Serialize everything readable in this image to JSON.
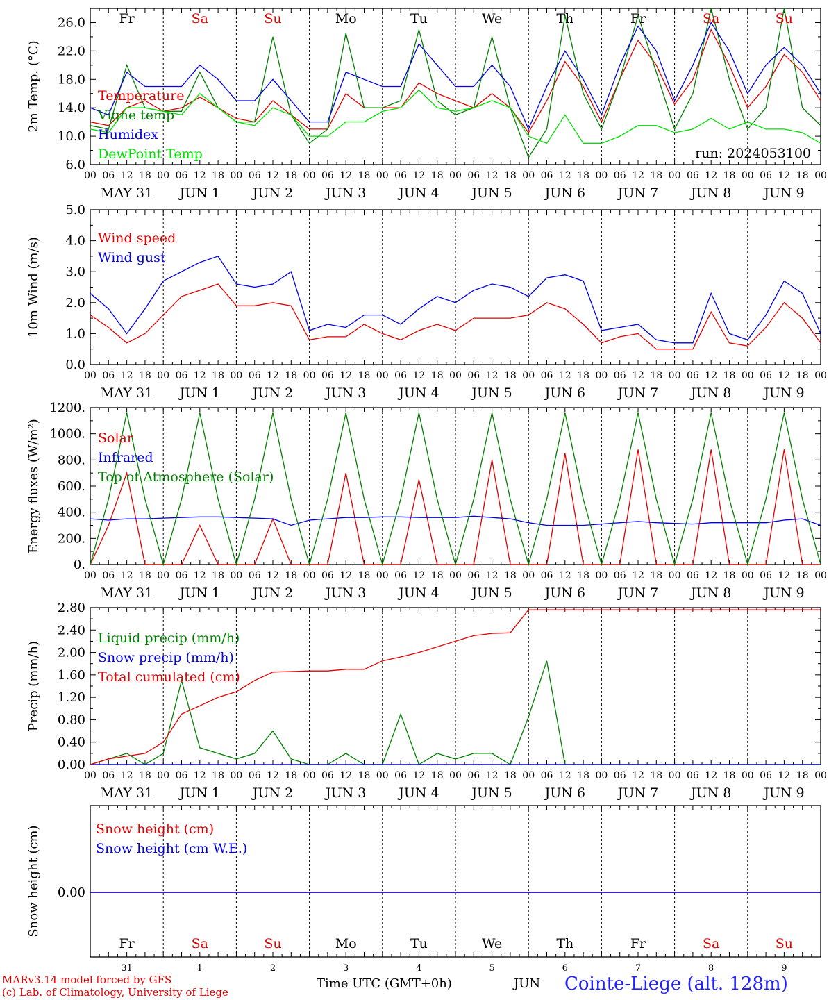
{
  "run": "run: 2024053100",
  "station": "Cointe-Liege (alt. 128m)",
  "credit_line1": "MARv3.14 model forced by GFS",
  "credit_line2": "(c) Lab. of Climatology, University of Liege",
  "time_axis_label": "Time UTC (GMT+0h)",
  "month_label": "JUN",
  "weekdays": [
    "Fr",
    "Sa",
    "Su",
    "Mo",
    "Tu",
    "We",
    "Th",
    "Fr",
    "Sa",
    "Su"
  ],
  "weekday_colors": [
    "#000000",
    "#e00000",
    "#e00000",
    "#000000",
    "#000000",
    "#000000",
    "#000000",
    "#000000",
    "#e00000",
    "#e00000"
  ],
  "date_labels": [
    "MAY 31",
    "JUN  1",
    "JUN  2",
    "JUN  3",
    "JUN  4",
    "JUN  5",
    "JUN  6",
    "JUN  7",
    "JUN  8",
    "JUN  9"
  ],
  "day_numbers": [
    "31",
    "1",
    "2",
    "3",
    "4",
    "5",
    "6",
    "7",
    "8",
    "9"
  ],
  "hour_ticks": [
    "00",
    "06",
    "12",
    "18"
  ],
  "final_hour": "00",
  "chart_data": [
    {
      "type": "line",
      "ylabel": "2m Temp. (°C)",
      "ylim": [
        6,
        28
      ],
      "yticks": [
        6.0,
        10.0,
        14.0,
        18.0,
        22.0,
        26.0
      ],
      "ytick_labels": [
        "6.0",
        "10.0",
        "14.0",
        "18.0",
        "22.0",
        "26.0"
      ],
      "x_hours": [
        0,
        6,
        12,
        18,
        24,
        30,
        36,
        42,
        48,
        54,
        60,
        66,
        72,
        78,
        84,
        90,
        96,
        102,
        108,
        114,
        120,
        126,
        132,
        138,
        144,
        150,
        156,
        162,
        168,
        174,
        180,
        186,
        192,
        198,
        204,
        210,
        216,
        222,
        228,
        234,
        240
      ],
      "series": [
        {
          "name": "Temperature",
          "color": "#e00000",
          "values": [
            12,
            11.5,
            14,
            15,
            13.5,
            14,
            15.5,
            14,
            12.5,
            12,
            15,
            13,
            11,
            11,
            16,
            14,
            14,
            14,
            17.5,
            16,
            15,
            14,
            16,
            14,
            10.5,
            15,
            20.5,
            17,
            12,
            18,
            23.5,
            20,
            14.5,
            18,
            25,
            20,
            14,
            17,
            21.5,
            19,
            15
          ]
        },
        {
          "name": "Vigne temp",
          "color": "#008000",
          "values": [
            11.5,
            11,
            20,
            14,
            13.5,
            13.5,
            19,
            14,
            12,
            12,
            24,
            13,
            9,
            11,
            24.5,
            14,
            14,
            15,
            25,
            15,
            13,
            14,
            24,
            14,
            7,
            11,
            27,
            16,
            11,
            18,
            27,
            19,
            11,
            16,
            28,
            18,
            11,
            14,
            28,
            14,
            11.5
          ]
        },
        {
          "name": "Humidex",
          "color": "#0000e0",
          "values": [
            14,
            13,
            19,
            17,
            17,
            17,
            20,
            18,
            15,
            15,
            18,
            15,
            12,
            12,
            19,
            18,
            17,
            17,
            23,
            20,
            17,
            17,
            20,
            17,
            11,
            17,
            22,
            18,
            13,
            20,
            25.5,
            22,
            15,
            20,
            26,
            22,
            16,
            20,
            22.5,
            20,
            16
          ]
        },
        {
          "name": "DewPoint Temp",
          "color": "#00e000",
          "values": [
            11,
            10.5,
            14,
            14,
            13.5,
            13,
            16,
            14,
            12,
            11.5,
            14,
            13,
            10,
            10,
            12,
            12,
            13.5,
            14,
            16.5,
            14,
            13.5,
            14,
            15,
            14,
            10,
            9,
            13,
            9,
            9,
            10,
            11.5,
            11.5,
            10.5,
            11,
            12.5,
            11,
            12,
            11,
            11,
            10.5,
            9
          ]
        }
      ]
    },
    {
      "type": "line",
      "ylabel": "10m Wind (m/s)",
      "ylim": [
        0,
        5
      ],
      "yticks": [
        0,
        1,
        2,
        3,
        4,
        5
      ],
      "ytick_labels": [
        "0.0",
        "1.0",
        "2.0",
        "3.0",
        "4.0",
        "5.0"
      ],
      "x_hours": [
        0,
        6,
        12,
        18,
        24,
        30,
        36,
        42,
        48,
        54,
        60,
        66,
        72,
        78,
        84,
        90,
        96,
        102,
        108,
        114,
        120,
        126,
        132,
        138,
        144,
        150,
        156,
        162,
        168,
        174,
        180,
        186,
        192,
        198,
        204,
        210,
        216,
        222,
        228,
        234,
        240
      ],
      "series": [
        {
          "name": "Wind speed",
          "color": "#e00000",
          "values": [
            1.6,
            1.2,
            0.7,
            1.0,
            1.6,
            2.2,
            2.4,
            2.6,
            1.9,
            1.9,
            2.0,
            1.9,
            0.8,
            0.9,
            0.9,
            1.3,
            1.0,
            0.8,
            1.1,
            1.3,
            1.1,
            1.5,
            1.5,
            1.5,
            1.6,
            2.0,
            1.8,
            1.3,
            0.7,
            0.9,
            1.0,
            0.5,
            0.5,
            0.5,
            1.7,
            0.7,
            0.6,
            1.2,
            2.0,
            1.5,
            0.7
          ]
        },
        {
          "name": "Wind gust",
          "color": "#0000e0",
          "values": [
            2.3,
            1.8,
            1.0,
            1.8,
            2.7,
            3.0,
            3.3,
            3.5,
            2.6,
            2.5,
            2.6,
            3.0,
            1.1,
            1.3,
            1.2,
            1.6,
            1.6,
            1.3,
            1.8,
            2.2,
            2.0,
            2.4,
            2.6,
            2.5,
            2.2,
            2.8,
            2.9,
            2.7,
            1.1,
            1.2,
            1.3,
            0.8,
            0.7,
            0.7,
            2.3,
            1.0,
            0.8,
            1.6,
            2.7,
            2.3,
            1.0
          ]
        }
      ]
    },
    {
      "type": "line",
      "ylabel": "Energy fluxes (W/m²)",
      "ylim": [
        0,
        1200
      ],
      "yticks": [
        0,
        200,
        400,
        600,
        800,
        1000,
        1200
      ],
      "ytick_labels": [
        "0.",
        "200.",
        "400.",
        "600.",
        "800.",
        "1000.",
        "1200."
      ],
      "x_hours": [
        0,
        6,
        12,
        18,
        24,
        30,
        36,
        42,
        48,
        54,
        60,
        66,
        72,
        78,
        84,
        90,
        96,
        102,
        108,
        114,
        120,
        126,
        132,
        138,
        144,
        150,
        156,
        162,
        168,
        174,
        180,
        186,
        192,
        198,
        204,
        210,
        216,
        222,
        228,
        234,
        240
      ],
      "series": [
        {
          "name": "Solar",
          "color": "#e00000",
          "values": [
            0,
            300,
            700,
            0,
            0,
            0,
            300,
            0,
            0,
            0,
            350,
            0,
            0,
            0,
            700,
            0,
            0,
            0,
            650,
            0,
            0,
            0,
            800,
            0,
            0,
            0,
            850,
            0,
            0,
            0,
            880,
            0,
            0,
            0,
            880,
            0,
            0,
            0,
            880,
            0,
            0
          ]
        },
        {
          "name": "Infrared",
          "color": "#0000e0",
          "values": [
            350,
            340,
            350,
            350,
            355,
            360,
            365,
            365,
            360,
            355,
            350,
            300,
            340,
            350,
            360,
            360,
            365,
            365,
            360,
            360,
            360,
            370,
            360,
            350,
            320,
            300,
            300,
            300,
            310,
            320,
            330,
            320,
            315,
            310,
            320,
            320,
            320,
            320,
            340,
            350,
            300
          ]
        },
        {
          "name": "Top of Atmosphere (Solar)",
          "color": "#008000",
          "values": [
            0,
            500,
            1160,
            500,
            0,
            500,
            1160,
            500,
            0,
            500,
            1160,
            500,
            0,
            500,
            1160,
            500,
            0,
            500,
            1160,
            500,
            0,
            500,
            1160,
            500,
            0,
            500,
            1160,
            500,
            0,
            500,
            1160,
            500,
            0,
            500,
            1160,
            500,
            0,
            500,
            1160,
            500,
            0
          ]
        }
      ]
    },
    {
      "type": "line",
      "ylabel": "Precip (mm/h)",
      "ylim": [
        0,
        2.8
      ],
      "yticks": [
        0,
        0.4,
        0.8,
        1.2,
        1.6,
        2.0,
        2.4,
        2.8
      ],
      "ytick_labels": [
        "0.00",
        "0.40",
        "0.80",
        "1.20",
        "1.60",
        "2.00",
        "2.40",
        "2.80"
      ],
      "x_hours": [
        0,
        6,
        12,
        18,
        24,
        30,
        36,
        42,
        48,
        54,
        60,
        66,
        72,
        78,
        84,
        90,
        96,
        102,
        108,
        114,
        120,
        126,
        132,
        138,
        144,
        150,
        156,
        162,
        168,
        174,
        180,
        186,
        192,
        198,
        204,
        210,
        216,
        222,
        228,
        234,
        240
      ],
      "series": [
        {
          "name": "Liquid precip (mm/h)",
          "color": "#008000",
          "values": [
            0,
            0.1,
            0.2,
            0,
            0.2,
            1.5,
            0.3,
            0.2,
            0.1,
            0.2,
            0.6,
            0.1,
            0,
            0,
            0.2,
            0,
            0,
            0.9,
            0,
            0.2,
            0.1,
            0.2,
            0.2,
            0,
            0.85,
            1.85,
            0,
            0,
            0,
            0,
            0,
            0,
            0,
            0,
            0,
            0,
            0,
            0,
            0,
            0,
            0
          ]
        },
        {
          "name": "Snow precip (mm/h)",
          "color": "#0000e0",
          "values": [
            0,
            0,
            0,
            0,
            0,
            0,
            0,
            0,
            0,
            0,
            0,
            0,
            0,
            0,
            0,
            0,
            0,
            0,
            0,
            0,
            0,
            0,
            0,
            0,
            0,
            0,
            0,
            0,
            0,
            0,
            0,
            0,
            0,
            0,
            0,
            0,
            0,
            0,
            0,
            0,
            0
          ]
        },
        {
          "name": "Total cumulated (cm)",
          "color": "#e00000",
          "values": [
            0,
            0.1,
            0.15,
            0.2,
            0.4,
            0.9,
            1.05,
            1.2,
            1.3,
            1.5,
            1.65,
            1.66,
            1.67,
            1.67,
            1.7,
            1.7,
            1.85,
            1.92,
            2.0,
            2.1,
            2.2,
            2.3,
            2.34,
            2.35,
            2.76,
            2.76,
            2.76,
            2.76,
            2.76,
            2.76,
            2.76,
            2.76,
            2.76,
            2.76,
            2.76,
            2.76,
            2.76,
            2.76,
            2.76,
            2.76,
            2.76
          ]
        }
      ]
    },
    {
      "type": "line",
      "ylabel": "Snow height (cm)",
      "yticks": [
        0
      ],
      "ytick_labels": [
        "0.00"
      ],
      "x_hours": [
        0,
        240
      ],
      "series": [
        {
          "name": "Snow height (cm)",
          "color": "#e00000",
          "values": [
            0,
            0
          ]
        },
        {
          "name": "Snow height (cm W.E.)",
          "color": "#0000e0",
          "values": [
            0,
            0
          ]
        }
      ]
    }
  ]
}
